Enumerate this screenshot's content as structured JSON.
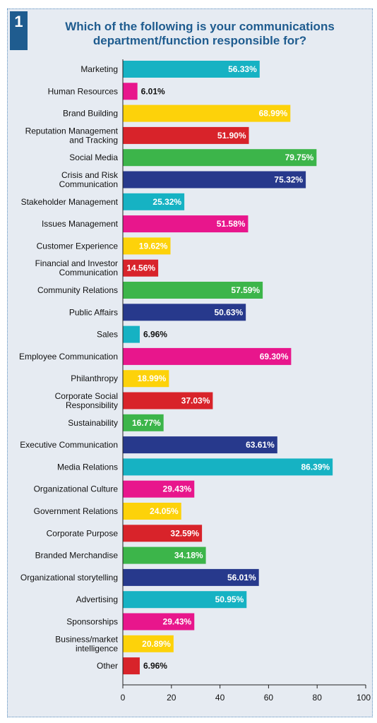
{
  "header": {
    "badge": "1",
    "title_line1": "Which of the following is your communications",
    "title_line2": "department/function responsible for?"
  },
  "chart_data": {
    "type": "bar",
    "orientation": "horizontal",
    "categories": [
      "Marketing",
      "Human Resources",
      "Brand Building",
      "Reputation Management and Tracking",
      "Social Media",
      "Crisis and Risk Communication",
      "Stakeholder Management",
      "Issues Management",
      "Customer Experience",
      "Financial and Investor Communication",
      "Community Relations",
      "Public Affairs",
      "Sales",
      "Employee Communication",
      "Philanthropy",
      "Corporate Social Responsibility",
      "Sustainability",
      "Executive Communication",
      "Media Relations",
      "Organizational Culture",
      "Government Relations",
      "Corporate Purpose",
      "Branded Merchandise",
      "Organizational storytelling",
      "Advertising",
      "Sponsorships",
      "Business/market intelligence",
      "Other"
    ],
    "category_lines": [
      [
        "Marketing"
      ],
      [
        "Human Resources"
      ],
      [
        "Brand Building"
      ],
      [
        "Reputation Management",
        "and Tracking"
      ],
      [
        "Social Media"
      ],
      [
        "Crisis and Risk",
        "Communication"
      ],
      [
        "Stakeholder Management"
      ],
      [
        "Issues Management"
      ],
      [
        "Customer Experience"
      ],
      [
        "Financial and Investor",
        "Communication"
      ],
      [
        "Community Relations"
      ],
      [
        "Public Affairs"
      ],
      [
        "Sales"
      ],
      [
        "Employee Communication"
      ],
      [
        "Philanthropy"
      ],
      [
        "Corporate Social",
        "Responsibility"
      ],
      [
        "Sustainability"
      ],
      [
        "Executive Communication"
      ],
      [
        "Media Relations"
      ],
      [
        "Organizational Culture"
      ],
      [
        "Government Relations"
      ],
      [
        "Corporate Purpose"
      ],
      [
        "Branded Merchandise"
      ],
      [
        "Organizational storytelling"
      ],
      [
        "Advertising"
      ],
      [
        "Sponsorships"
      ],
      [
        "Business/market",
        "intelligence"
      ],
      [
        "Other"
      ]
    ],
    "values": [
      56.33,
      6.01,
      68.99,
      51.9,
      79.75,
      75.32,
      25.32,
      51.58,
      19.62,
      14.56,
      57.59,
      50.63,
      6.96,
      69.3,
      18.99,
      37.03,
      16.77,
      63.61,
      86.39,
      29.43,
      24.05,
      32.59,
      34.18,
      56.01,
      50.95,
      29.43,
      20.89,
      6.96
    ],
    "value_labels": [
      "56.33%",
      "6.01%",
      "68.99%",
      "51.90%",
      "79.75%",
      "75.32%",
      "25.32%",
      "51.58%",
      "19.62%",
      "14.56%",
      "57.59%",
      "50.63%",
      "6.96%",
      "69.30%",
      "18.99%",
      "37.03%",
      "16.77%",
      "63.61%",
      "86.39%",
      "29.43%",
      "24.05%",
      "32.59%",
      "34.18%",
      "56.01%",
      "50.95%",
      "29.43%",
      "20.89%",
      "6.96%"
    ],
    "color_cycle": [
      "#16b2c3",
      "#e8168c",
      "#fdd20a",
      "#d8232a",
      "#3cb54a",
      "#27398c"
    ],
    "xlim": [
      0,
      100
    ],
    "xticks": [
      0,
      20,
      40,
      60,
      80,
      100
    ],
    "xlabel": "",
    "ylabel": "",
    "grid": false
  },
  "colors": {
    "panel_bg": "#e6ebf2",
    "title": "#1f5c8f",
    "badge": "#1f5c8f",
    "value_text_inside": "#ffffff",
    "value_text_outside": "#111111"
  }
}
